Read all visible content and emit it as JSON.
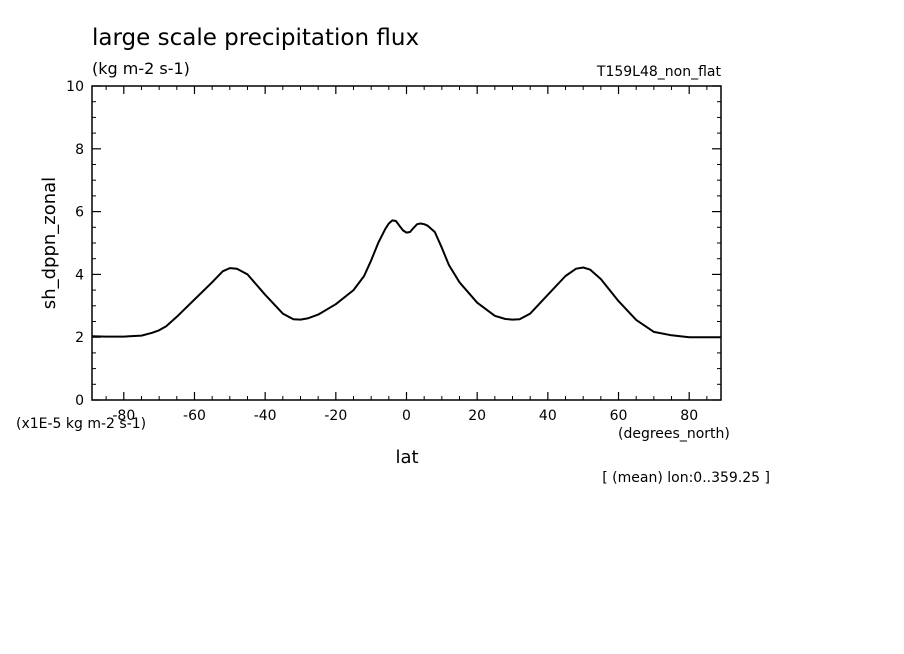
{
  "chart_data": {
    "type": "line",
    "title": "large scale precipitation flux",
    "units": "(kg m-2 s-1)",
    "run_label": "T159L48_non_flat",
    "ylabel": "sh_dppn_zonal",
    "scale_note": "(x1E-5 kg m-2 s-1)",
    "xlabel": "lat",
    "x_units": "(degrees_north)",
    "footnote": "[ (mean) lon:0..359.25 ]",
    "xlim": [
      -89,
      89
    ],
    "ylim": [
      0,
      10
    ],
    "x_ticks": [
      -80,
      -60,
      -40,
      -20,
      0,
      20,
      40,
      60,
      80
    ],
    "x_tick_labels": [
      "-80",
      "-60",
      "-40",
      "-20",
      "0",
      "20",
      "40",
      "60",
      "80"
    ],
    "y_ticks": [
      0,
      2,
      4,
      6,
      8,
      10
    ],
    "y_tick_labels": [
      "0",
      "2",
      "4",
      "6",
      "8",
      "10"
    ],
    "grid": false,
    "series": [
      {
        "x": [
          -89,
          -85,
          -80,
          -75,
          -72,
          -70,
          -68,
          -65,
          -60,
          -55,
          -52,
          -50,
          -48,
          -45,
          -40,
          -35,
          -32,
          -30,
          -28,
          -25,
          -20,
          -15,
          -12,
          -10,
          -8,
          -6,
          -5,
          -4,
          -3,
          -2,
          -1,
          0,
          1,
          2,
          3,
          4,
          5,
          6,
          8,
          10,
          12,
          15,
          20,
          25,
          28,
          30,
          32,
          35,
          40,
          45,
          48,
          50,
          52,
          55,
          60,
          65,
          70,
          75,
          80,
          85,
          89
        ],
        "y": [
          2.03,
          2.02,
          2.02,
          2.05,
          2.14,
          2.22,
          2.35,
          2.65,
          3.2,
          3.75,
          4.1,
          4.2,
          4.18,
          4.0,
          3.35,
          2.75,
          2.57,
          2.56,
          2.6,
          2.72,
          3.05,
          3.5,
          3.95,
          4.45,
          5.0,
          5.45,
          5.62,
          5.72,
          5.7,
          5.55,
          5.4,
          5.33,
          5.35,
          5.48,
          5.6,
          5.62,
          5.6,
          5.55,
          5.35,
          4.85,
          4.3,
          3.75,
          3.1,
          2.68,
          2.58,
          2.56,
          2.57,
          2.75,
          3.35,
          3.95,
          4.18,
          4.22,
          4.15,
          3.85,
          3.15,
          2.55,
          2.17,
          2.06,
          2.0,
          2.0,
          2.0
        ]
      }
    ]
  }
}
